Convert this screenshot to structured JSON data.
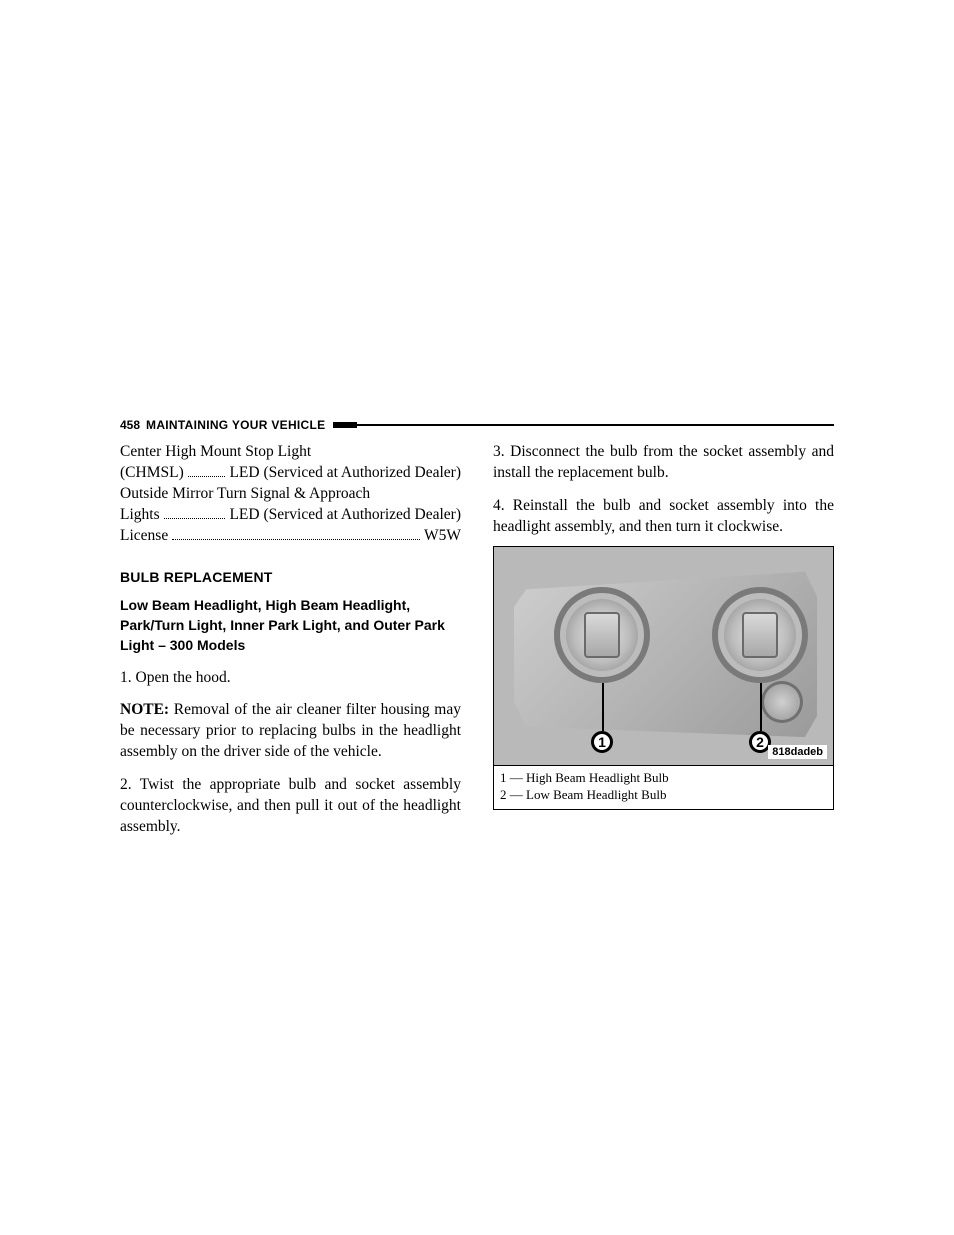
{
  "header": {
    "page_number": "458",
    "chapter_title": "MAINTAINING YOUR VEHICLE"
  },
  "bulb_list": [
    {
      "label_line1": "Center High Mount Stop Light",
      "label_line2": "(CHMSL)",
      "value": "LED (Serviced at Authorized Dealer)"
    },
    {
      "label_line1": "Outside Mirror Turn Signal & Approach",
      "label_line2": "Lights",
      "value": "LED (Serviced at Authorized Dealer)"
    },
    {
      "label_line1": "License",
      "value": "W5W"
    }
  ],
  "section_heading": "BULB REPLACEMENT",
  "subsection_heading": "Low Beam Headlight, High Beam Headlight, Park/Turn Light, Inner Park Light, and Outer Park Light – 300 Models",
  "left_paragraphs": {
    "step1": "1. Open the hood.",
    "note_label": "NOTE:",
    "note_body": " Removal of the air cleaner filter housing may be necessary prior to replacing bulbs in the headlight assembly on the driver side of the vehicle.",
    "step2": "2. Twist the appropriate bulb and socket assembly counterclockwise, and then pull it out of the headlight assembly."
  },
  "right_paragraphs": {
    "step3": "3. Disconnect the bulb from the socket assembly and install the replacement bulb.",
    "step4": "4. Reinstall the bulb and socket assembly into the headlight assembly, and then turn it clockwise."
  },
  "figure": {
    "callout1": "1",
    "callout2": "2",
    "image_code": "818dadeb",
    "legend1": "1 — High Beam Headlight Bulb",
    "legend2": "2 — Low Beam Headlight Bulb"
  },
  "style": {
    "body_font_size_pt": 11.5,
    "heading_font_family": "Arial",
    "body_font_family": "Palatino",
    "text_color": "#000000",
    "background_color": "#ffffff",
    "rule_color": "#000000"
  }
}
